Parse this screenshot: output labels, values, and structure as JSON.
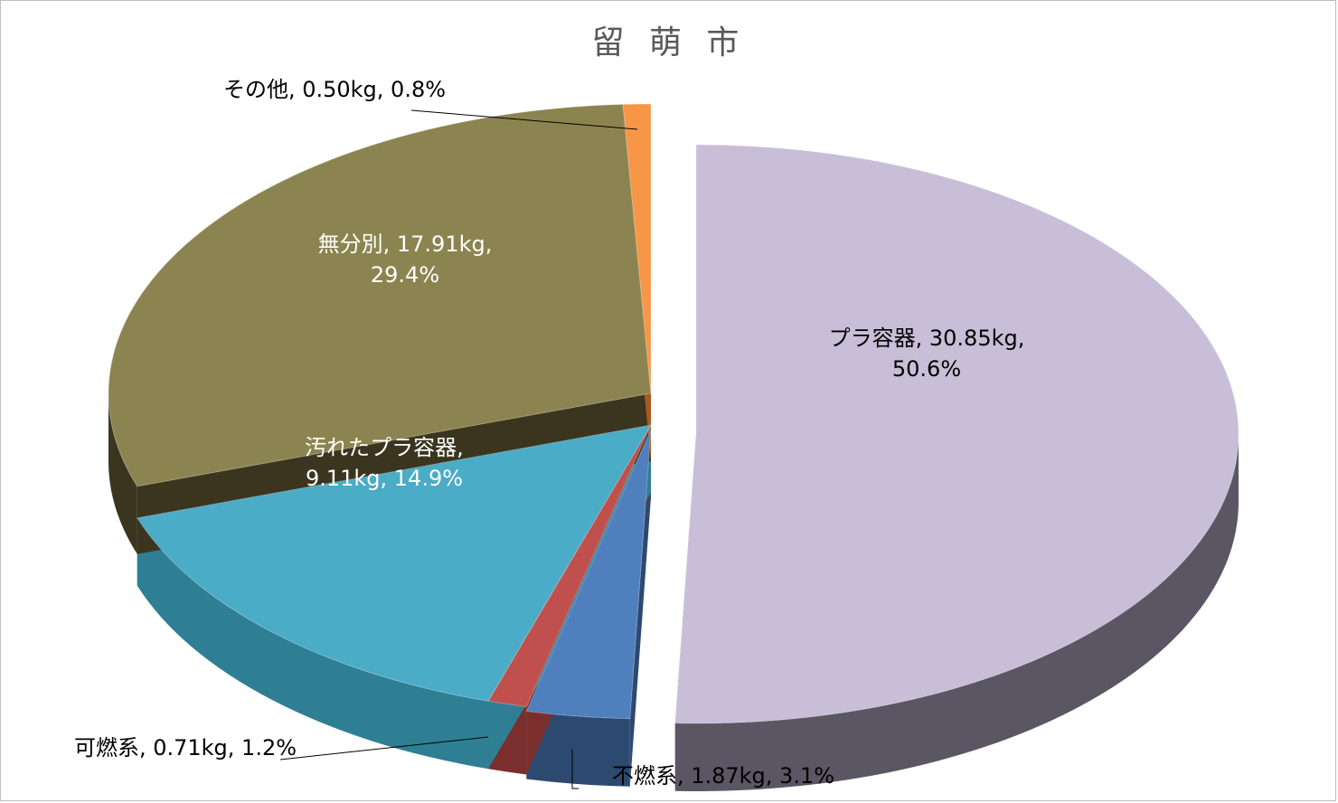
{
  "chart_data": {
    "type": "pie",
    "title": "留 萌 市",
    "slices": [
      {
        "name": "プラ容器",
        "value": 30.85,
        "percent": 50.6,
        "label_line1": "プラ容器, 30.85kg,",
        "label_line2": "50.6%",
        "color": "#c8bed8",
        "side": "#5a5664"
      },
      {
        "name": "不燃系",
        "value": 1.87,
        "percent": 3.1,
        "label_line1": "不燃系, 1.87kg, 3.1%",
        "label_line2": "",
        "color": "#4f7fbd",
        "side": "#2c4a70"
      },
      {
        "name": "可燃系",
        "value": 0.71,
        "percent": 1.2,
        "label_line1": "可燃系, 0.71kg, 1.2%",
        "label_line2": "",
        "color": "#c0504d",
        "side": "#7a2f2d"
      },
      {
        "name": "汚れたプラ容器",
        "value": 9.11,
        "percent": 14.9,
        "label_line1": "汚れたプラ容器,",
        "label_line2": "9.11kg, 14.9%",
        "color": "#4aacc6",
        "side": "#2f7f94"
      },
      {
        "name": "無分別",
        "value": 17.91,
        "percent": 29.4,
        "label_line1": "無分別, 17.91kg,",
        "label_line2": "29.4%",
        "color": "#8c8450",
        "side": "#3b3520"
      },
      {
        "name": "その他",
        "value": 0.5,
        "percent": 0.8,
        "label_line1": "その他, 0.50kg, 0.8%",
        "label_line2": "",
        "color": "#f79646",
        "side": "#a85a1e"
      }
    ],
    "legend": "none"
  }
}
